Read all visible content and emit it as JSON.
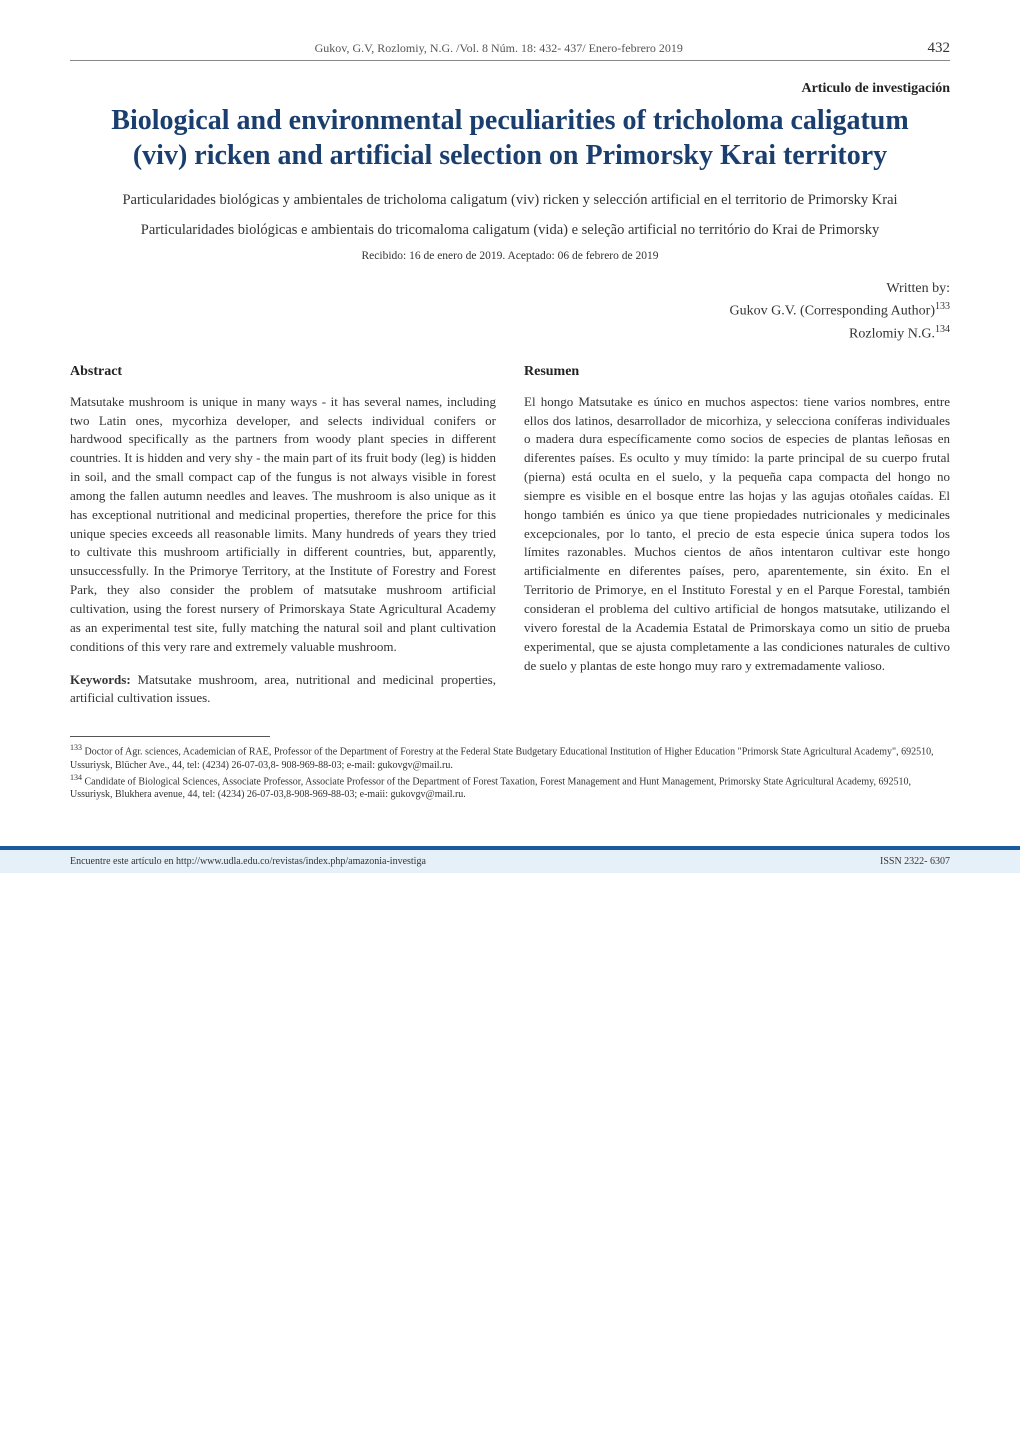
{
  "header": {
    "running": "Gukov, G.V, Rozlomiy, N.G. /Vol. 8 Núm. 18: 432- 437/ Enero-febrero 2019",
    "page_number": "432"
  },
  "article_type": "Articulo de investigación",
  "title": "Biological and environmental peculiarities of tricholoma caligatum (viv) ricken and artificial selection on Primorsky Krai territory",
  "subtitle_es": "Particularidades biológicas y ambientales de tricholoma caligatum (viv) ricken y selección artificial en el territorio de Primorsky Krai",
  "subtitle_pt": "Particularidades biológicas e ambientais do tricomaloma caligatum (vida) e seleção artificial no território do Krai de Primorsky",
  "received": "Recibido: 16 de enero de 2019. Aceptado: 06 de febrero de 2019",
  "authors": {
    "written_by": "Written by:",
    "line1": "Gukov G.V. (Corresponding Author)",
    "sup1": "133",
    "line2": "Rozlomiy N.G.",
    "sup2": "134"
  },
  "left": {
    "heading": "Abstract",
    "body": "Matsutake mushroom is unique in many ways - it has several names, including two Latin ones, mycorhiza developer, and selects individual conifers or hardwood specifically as the partners from woody plant species in different countries. It is hidden and very shy - the main part of its fruit body (leg) is hidden in soil, and the small compact cap of the fungus is not always visible in forest among the fallen autumn needles and leaves. The mushroom is also unique as it has exceptional nutritional and medicinal properties, therefore the price for this unique species exceeds all reasonable limits. Many hundreds of years they tried to cultivate this mushroom artificially in different countries, but, apparently, unsuccessfully. In the Primorye Territory, at the Institute of Forestry and Forest Park, they also consider the problem of matsutake mushroom artificial cultivation, using the forest nursery of Primorskaya State Agricultural Academy as an experimental test site, fully matching the natural soil and plant cultivation conditions of this very rare and extremely valuable mushroom.",
    "keywords_label": "Keywords:",
    "keywords": " Matsutake mushroom, area, nutritional and medicinal properties, artificial cultivation issues."
  },
  "right": {
    "heading": "Resumen",
    "body": "El hongo Matsutake es único en muchos aspectos: tiene varios nombres, entre ellos dos latinos, desarrollador de micorhiza, y selecciona coníferas individuales o madera dura específicamente como socios de especies de plantas leñosas en diferentes países. Es oculto y muy tímido: la parte principal de su cuerpo frutal (pierna) está oculta en el suelo, y la pequeña capa compacta del hongo no siempre es visible en el bosque entre las hojas y las agujas otoñales caídas. El hongo también es único ya que tiene propiedades nutricionales y medicinales excepcionales, por lo tanto, el precio de esta especie única supera todos los límites razonables. Muchos cientos de años intentaron cultivar este hongo artificialmente en diferentes países, pero, aparentemente, sin éxito. En el Territorio de Primorye, en el Instituto Forestal y en el Parque Forestal, también consideran el problema del cultivo artificial de hongos matsutake, utilizando el vivero forestal de la Academia Estatal de Primorskaya como un sitio de prueba experimental, que se ajusta completamente a las condiciones naturales de cultivo de suelo y plantas de este hongo muy raro y extremadamente valioso."
  },
  "footnotes": {
    "fn1_sup": "133",
    "fn1": " Doctor of Agr. sciences, Academician of RAE, Professor of the Department of Forestry at the Federal State Budgetary Educational Institution of Higher Education \"Primorsk State Agricultural Academy\", 692510, Ussuriysk, Blücher Ave., 44, tel: (4234) 26-07-03,8- 908-969-88-03; e-mail: gukovgv@mail.ru.",
    "fn2_sup": "134",
    "fn2": " Candidate of Biological Sciences, Associate Professor, Associate Professor of the Department of Forest Taxation, Forest Management and Hunt Management, Primorsky State Agricultural Academy, 692510, Ussuriysk, Blukhera avenue, 44, tel: (4234) 26-07-03,8-908-969-88-03; e-maii: gukovgv@mail.ru."
  },
  "footer": {
    "left": "Encuentre este artículo en http://www.udla.edu.co/revistas/index.php/amazonia-investiga",
    "right": "ISSN 2322- 6307"
  },
  "colors": {
    "title_color": "#1a3e6e",
    "footer_bar": "#1a5a9e",
    "footer_bg": "#e6f0f8",
    "text": "#333333"
  }
}
